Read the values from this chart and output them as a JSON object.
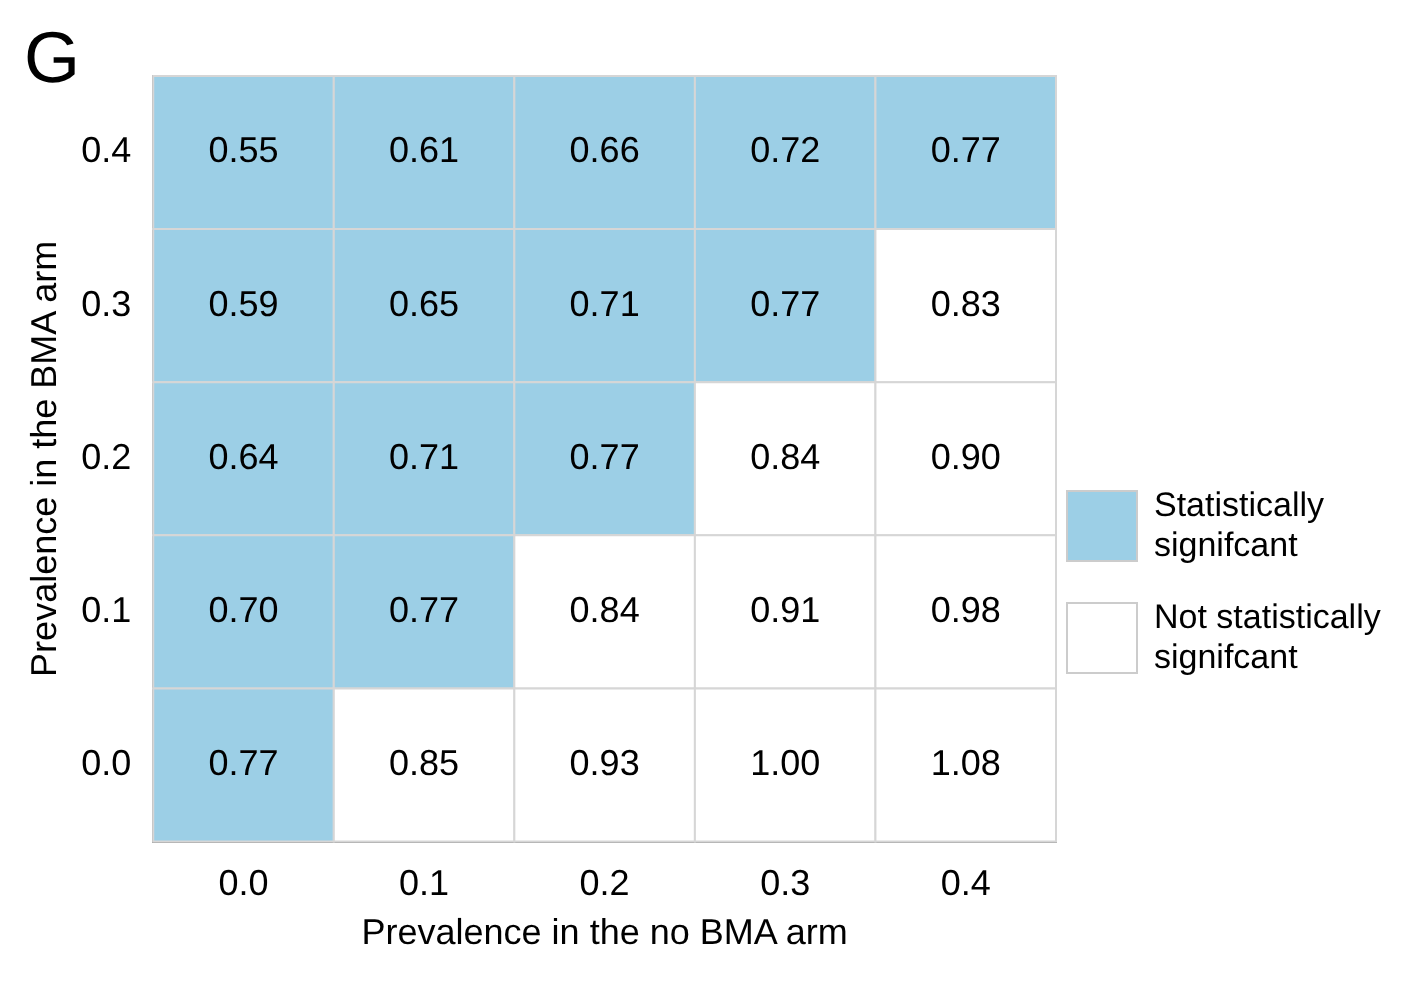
{
  "chart_data": {
    "type": "heatmap",
    "xlabel": "Prevalence in the no BMA arm",
    "ylabel": "Prevalence in the BMA arm",
    "annotations": [
      "G",
      "Statistically signifcant",
      "Not statistically signifcant"
    ],
    "categories": [
      "0.0",
      "0.1",
      "0.2",
      "0.3",
      "0.4"
    ],
    "y_categories": [
      "0.4",
      "0.3",
      "0.2",
      "0.1",
      "0.0"
    ],
    "cells": [
      [
        0.55,
        0.61,
        0.66,
        0.72,
        0.77
      ],
      [
        0.59,
        0.65,
        0.71,
        0.77,
        0.83
      ],
      [
        0.64,
        0.71,
        0.77,
        0.84,
        0.9
      ],
      [
        0.7,
        0.77,
        0.84,
        0.91,
        0.98
      ],
      [
        0.77,
        0.85,
        0.93,
        1.0,
        1.08
      ]
    ],
    "cell_labels": [
      [
        "0.55",
        "0.61",
        "0.66",
        "0.72",
        "0.77"
      ],
      [
        "0.59",
        "0.65",
        "0.71",
        "0.77",
        "0.83"
      ],
      [
        "0.64",
        "0.71",
        "0.77",
        "0.84",
        "0.90"
      ],
      [
        "0.70",
        "0.77",
        "0.84",
        "0.91",
        "0.98"
      ],
      [
        "0.77",
        "0.85",
        "0.93",
        "1.00",
        "1.08"
      ]
    ],
    "colors": [
      [
        "#9ccfe6",
        "#9ccfe6",
        "#9ccfe6",
        "#9ccfe6",
        "#9ccfe6"
      ],
      [
        "#9ccfe6",
        "#9ccfe6",
        "#9ccfe6",
        "#9ccfe6",
        "#ffffff"
      ],
      [
        "#9ccfe6",
        "#9ccfe6",
        "#9ccfe6",
        "#ffffff",
        "#ffffff"
      ],
      [
        "#9ccfe6",
        "#9ccfe6",
        "#ffffff",
        "#ffffff",
        "#ffffff"
      ],
      [
        "#9ccfe6",
        "#ffffff",
        "#ffffff",
        "#ffffff",
        "#ffffff"
      ]
    ]
  }
}
